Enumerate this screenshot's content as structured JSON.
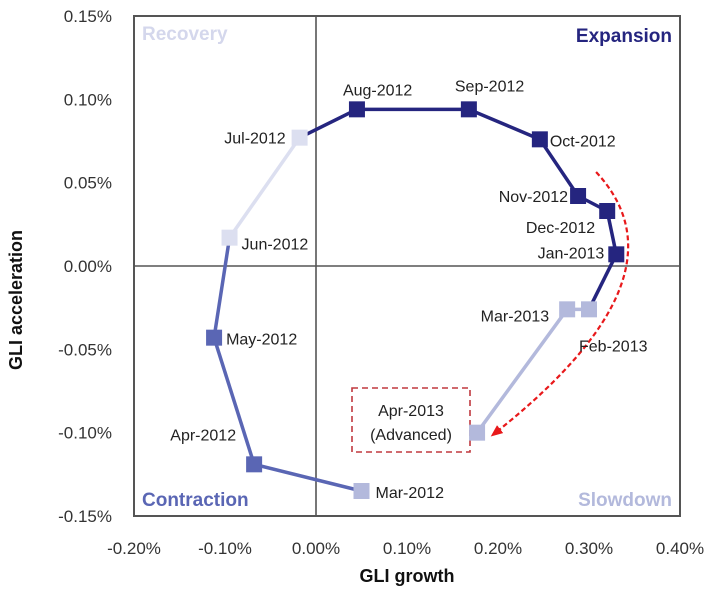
{
  "chart_data": {
    "type": "line",
    "subtype": "connected-scatter",
    "title": "",
    "xlabel": "GLI growth",
    "ylabel": "GLI  acceleration",
    "xlim": [
      -0.2,
      0.4
    ],
    "ylim": [
      -0.15,
      0.15
    ],
    "x_ticks": [
      "-0.20%",
      "-0.10%",
      "0.00%",
      "0.10%",
      "0.20%",
      "0.30%",
      "0.40%"
    ],
    "x_tick_values": [
      -0.2,
      -0.1,
      0.0,
      0.1,
      0.2,
      0.3,
      0.4
    ],
    "y_ticks": [
      "0.15%",
      "0.10%",
      "0.05%",
      "0.00%",
      "-0.05%",
      "-0.10%",
      "-0.15%"
    ],
    "y_tick_values": [
      0.15,
      0.1,
      0.05,
      0.0,
      -0.05,
      -0.1,
      -0.15
    ],
    "units": "%",
    "grid": false,
    "quadrants": [
      {
        "name": "Recovery",
        "position": "top-left",
        "color": "#d4d7ec"
      },
      {
        "name": "Expansion",
        "position": "top-right",
        "color": "#25257f"
      },
      {
        "name": "Contraction",
        "position": "bottom-left",
        "color": "#5a66b4"
      },
      {
        "name": "Slowdown",
        "position": "bottom-right",
        "color": "#b3b9dc"
      }
    ],
    "points": [
      {
        "label": "Mar-2012",
        "x": 0.05,
        "y": -0.135,
        "phase": "Slowdown"
      },
      {
        "label": "Apr-2012",
        "x": -0.068,
        "y": -0.119,
        "phase": "Contraction"
      },
      {
        "label": "May-2012",
        "x": -0.112,
        "y": -0.043,
        "phase": "Contraction"
      },
      {
        "label": "Jun-2012",
        "x": -0.095,
        "y": 0.017,
        "phase": "Recovery"
      },
      {
        "label": "Jul-2012",
        "x": -0.018,
        "y": 0.077,
        "phase": "Recovery"
      },
      {
        "label": "Aug-2012",
        "x": 0.045,
        "y": 0.094,
        "phase": "Expansion"
      },
      {
        "label": "Sep-2012",
        "x": 0.168,
        "y": 0.094,
        "phase": "Expansion"
      },
      {
        "label": "Oct-2012",
        "x": 0.246,
        "y": 0.076,
        "phase": "Expansion"
      },
      {
        "label": "Nov-2012",
        "x": 0.288,
        "y": 0.042,
        "phase": "Expansion"
      },
      {
        "label": "Dec-2012",
        "x": 0.32,
        "y": 0.033,
        "phase": "Expansion"
      },
      {
        "label": "Jan-2013",
        "x": 0.33,
        "y": 0.007,
        "phase": "Expansion"
      },
      {
        "label": "Feb-2013",
        "x": 0.3,
        "y": -0.026,
        "phase": "Slowdown"
      },
      {
        "label": "Mar-2013",
        "x": 0.276,
        "y": -0.026,
        "phase": "Slowdown"
      },
      {
        "label": "Apr-2013",
        "x": 0.177,
        "y": -0.1,
        "phase": "Slowdown"
      }
    ],
    "annotations": [
      {
        "text": "Apr-2013\n(Advanced)",
        "style": "red dashed box",
        "target": "Apr-2013"
      },
      {
        "text": "",
        "style": "red dashed curved arrow",
        "from": "Nov-2012",
        "to": "Apr-2013"
      }
    ]
  },
  "colors": {
    "Expansion": "#25257f",
    "Contraction": "#5a66b4",
    "Slowdown": "#b3b9dc",
    "Recovery": "#dcdff0",
    "annotation": "#e8191b",
    "frame": "#555555"
  }
}
